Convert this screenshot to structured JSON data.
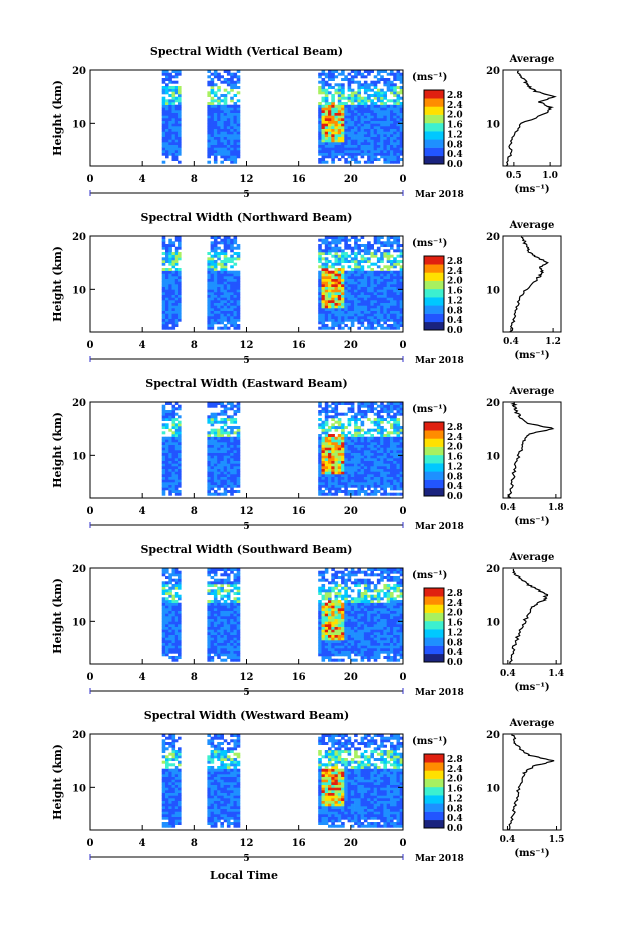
{
  "figure": {
    "xlabel": "Local Time",
    "date_label": "Mar 2018",
    "day_label": "5",
    "colorbar_unit": "(ms⁻¹)",
    "colorbar_ticks": [
      "2.8",
      "2.4",
      "2.0",
      "1.6",
      "1.2",
      "0.8",
      "0.4",
      "0.0"
    ],
    "colors": [
      "#1a237e",
      "#2255ff",
      "#1e90ff",
      "#00c8ff",
      "#3cf0d0",
      "#a8f060",
      "#ffe000",
      "#ff8c00",
      "#e02010"
    ],
    "average_title": "Average",
    "average_xunit": "(ms⁻¹)"
  },
  "chart_data": [
    {
      "type": "heatmap",
      "title": "Spectral Width (Vertical Beam)",
      "ylabel": "Height (km)",
      "xlim": [
        0,
        24
      ],
      "ylim": [
        2,
        20
      ],
      "xticks": [
        "0",
        "4",
        "8",
        "12",
        "16",
        "20",
        "0"
      ],
      "yticks": [
        "20",
        "10"
      ],
      "colorbar_range": [
        0.0,
        3.0
      ],
      "data_blocks_hours": [
        [
          5.5,
          7.0
        ],
        [
          9.0,
          11.5
        ],
        [
          17.5,
          24.0
        ]
      ],
      "average_profile": {
        "xticks": [
          "0.5",
          "1.0"
        ],
        "xlim": [
          0.35,
          1.15
        ],
        "height_km": [
          2,
          4,
          6,
          8,
          10,
          12,
          13,
          14,
          15,
          16,
          17,
          18,
          19,
          20
        ],
        "width": [
          0.4,
          0.45,
          0.45,
          0.5,
          0.62,
          0.95,
          1.0,
          0.85,
          1.05,
          0.8,
          0.7,
          0.65,
          0.6,
          0.55
        ]
      }
    },
    {
      "type": "heatmap",
      "title": "Spectral Width (Northward Beam)",
      "ylabel": "Height (km)",
      "xlim": [
        0,
        24
      ],
      "ylim": [
        2,
        20
      ],
      "xticks": [
        "0",
        "4",
        "8",
        "12",
        "16",
        "20",
        "0"
      ],
      "yticks": [
        "20",
        "10"
      ],
      "colorbar_range": [
        0.0,
        3.0
      ],
      "data_blocks_hours": [
        [
          5.5,
          7.0
        ],
        [
          9.0,
          11.5
        ],
        [
          17.5,
          24.0
        ]
      ],
      "average_profile": {
        "xticks": [
          "0.4",
          "1.2"
        ],
        "xlim": [
          0.25,
          1.35
        ],
        "height_km": [
          2,
          4,
          6,
          8,
          10,
          12,
          13,
          14,
          15,
          16,
          17,
          18,
          19,
          20
        ],
        "width": [
          0.4,
          0.45,
          0.5,
          0.55,
          0.7,
          0.9,
          1.0,
          0.95,
          1.1,
          0.9,
          0.75,
          0.7,
          0.65,
          0.6
        ]
      }
    },
    {
      "type": "heatmap",
      "title": "Spectral Width (Eastward Beam)",
      "ylabel": "Height (km)",
      "xlim": [
        0,
        24
      ],
      "ylim": [
        2,
        20
      ],
      "xticks": [
        "0",
        "4",
        "8",
        "12",
        "16",
        "20",
        "0"
      ],
      "yticks": [
        "20",
        "10"
      ],
      "colorbar_range": [
        0.0,
        3.0
      ],
      "data_blocks_hours": [
        [
          5.5,
          7.0
        ],
        [
          9.0,
          11.5
        ],
        [
          17.5,
          24.0
        ]
      ],
      "average_profile": {
        "xticks": [
          "0.4",
          "1.8"
        ],
        "xlim": [
          0.25,
          1.95
        ],
        "height_km": [
          2,
          4,
          6,
          8,
          10,
          12,
          13,
          14,
          15,
          16,
          17,
          18,
          19,
          20
        ],
        "width": [
          0.45,
          0.5,
          0.55,
          0.6,
          0.7,
          0.85,
          0.9,
          1.0,
          1.75,
          1.0,
          0.8,
          0.65,
          0.6,
          0.55
        ]
      }
    },
    {
      "type": "heatmap",
      "title": "Spectral Width (Southward Beam)",
      "ylabel": "Height (km)",
      "xlim": [
        0,
        24
      ],
      "ylim": [
        2,
        20
      ],
      "xticks": [
        "0",
        "4",
        "8",
        "12",
        "16",
        "20",
        "0"
      ],
      "yticks": [
        "20",
        "10"
      ],
      "colorbar_range": [
        0.0,
        3.0
      ],
      "data_blocks_hours": [
        [
          5.5,
          7.0
        ],
        [
          9.0,
          11.5
        ],
        [
          17.5,
          24.0
        ]
      ],
      "average_profile": {
        "xticks": [
          "0.4",
          "1.4"
        ],
        "xlim": [
          0.3,
          1.5
        ],
        "height_km": [
          2,
          4,
          6,
          8,
          10,
          12,
          13,
          14,
          15,
          16,
          17,
          18,
          19,
          20
        ],
        "width": [
          0.45,
          0.5,
          0.55,
          0.65,
          0.75,
          0.85,
          0.95,
          1.15,
          1.2,
          1.0,
          0.8,
          0.65,
          0.55,
          0.5
        ]
      }
    },
    {
      "type": "heatmap",
      "title": "Spectral Width (Westward Beam)",
      "ylabel": "Height (km)",
      "xlim": [
        0,
        24
      ],
      "ylim": [
        2,
        20
      ],
      "xticks": [
        "0",
        "4",
        "8",
        "12",
        "16",
        "20",
        "0"
      ],
      "yticks": [
        "20",
        "10"
      ],
      "colorbar_range": [
        0.0,
        3.0
      ],
      "data_blocks_hours": [
        [
          5.5,
          7.0
        ],
        [
          9.0,
          11.5
        ],
        [
          17.5,
          24.0
        ]
      ],
      "average_profile": {
        "xticks": [
          "0.4",
          "1.5"
        ],
        "xlim": [
          0.3,
          1.6
        ],
        "height_km": [
          2,
          4,
          6,
          8,
          10,
          12,
          13,
          14,
          15,
          16,
          17,
          18,
          19,
          20
        ],
        "width": [
          0.45,
          0.5,
          0.55,
          0.6,
          0.65,
          0.75,
          0.8,
          1.0,
          1.45,
          0.9,
          0.7,
          0.6,
          0.55,
          0.5
        ]
      }
    }
  ]
}
